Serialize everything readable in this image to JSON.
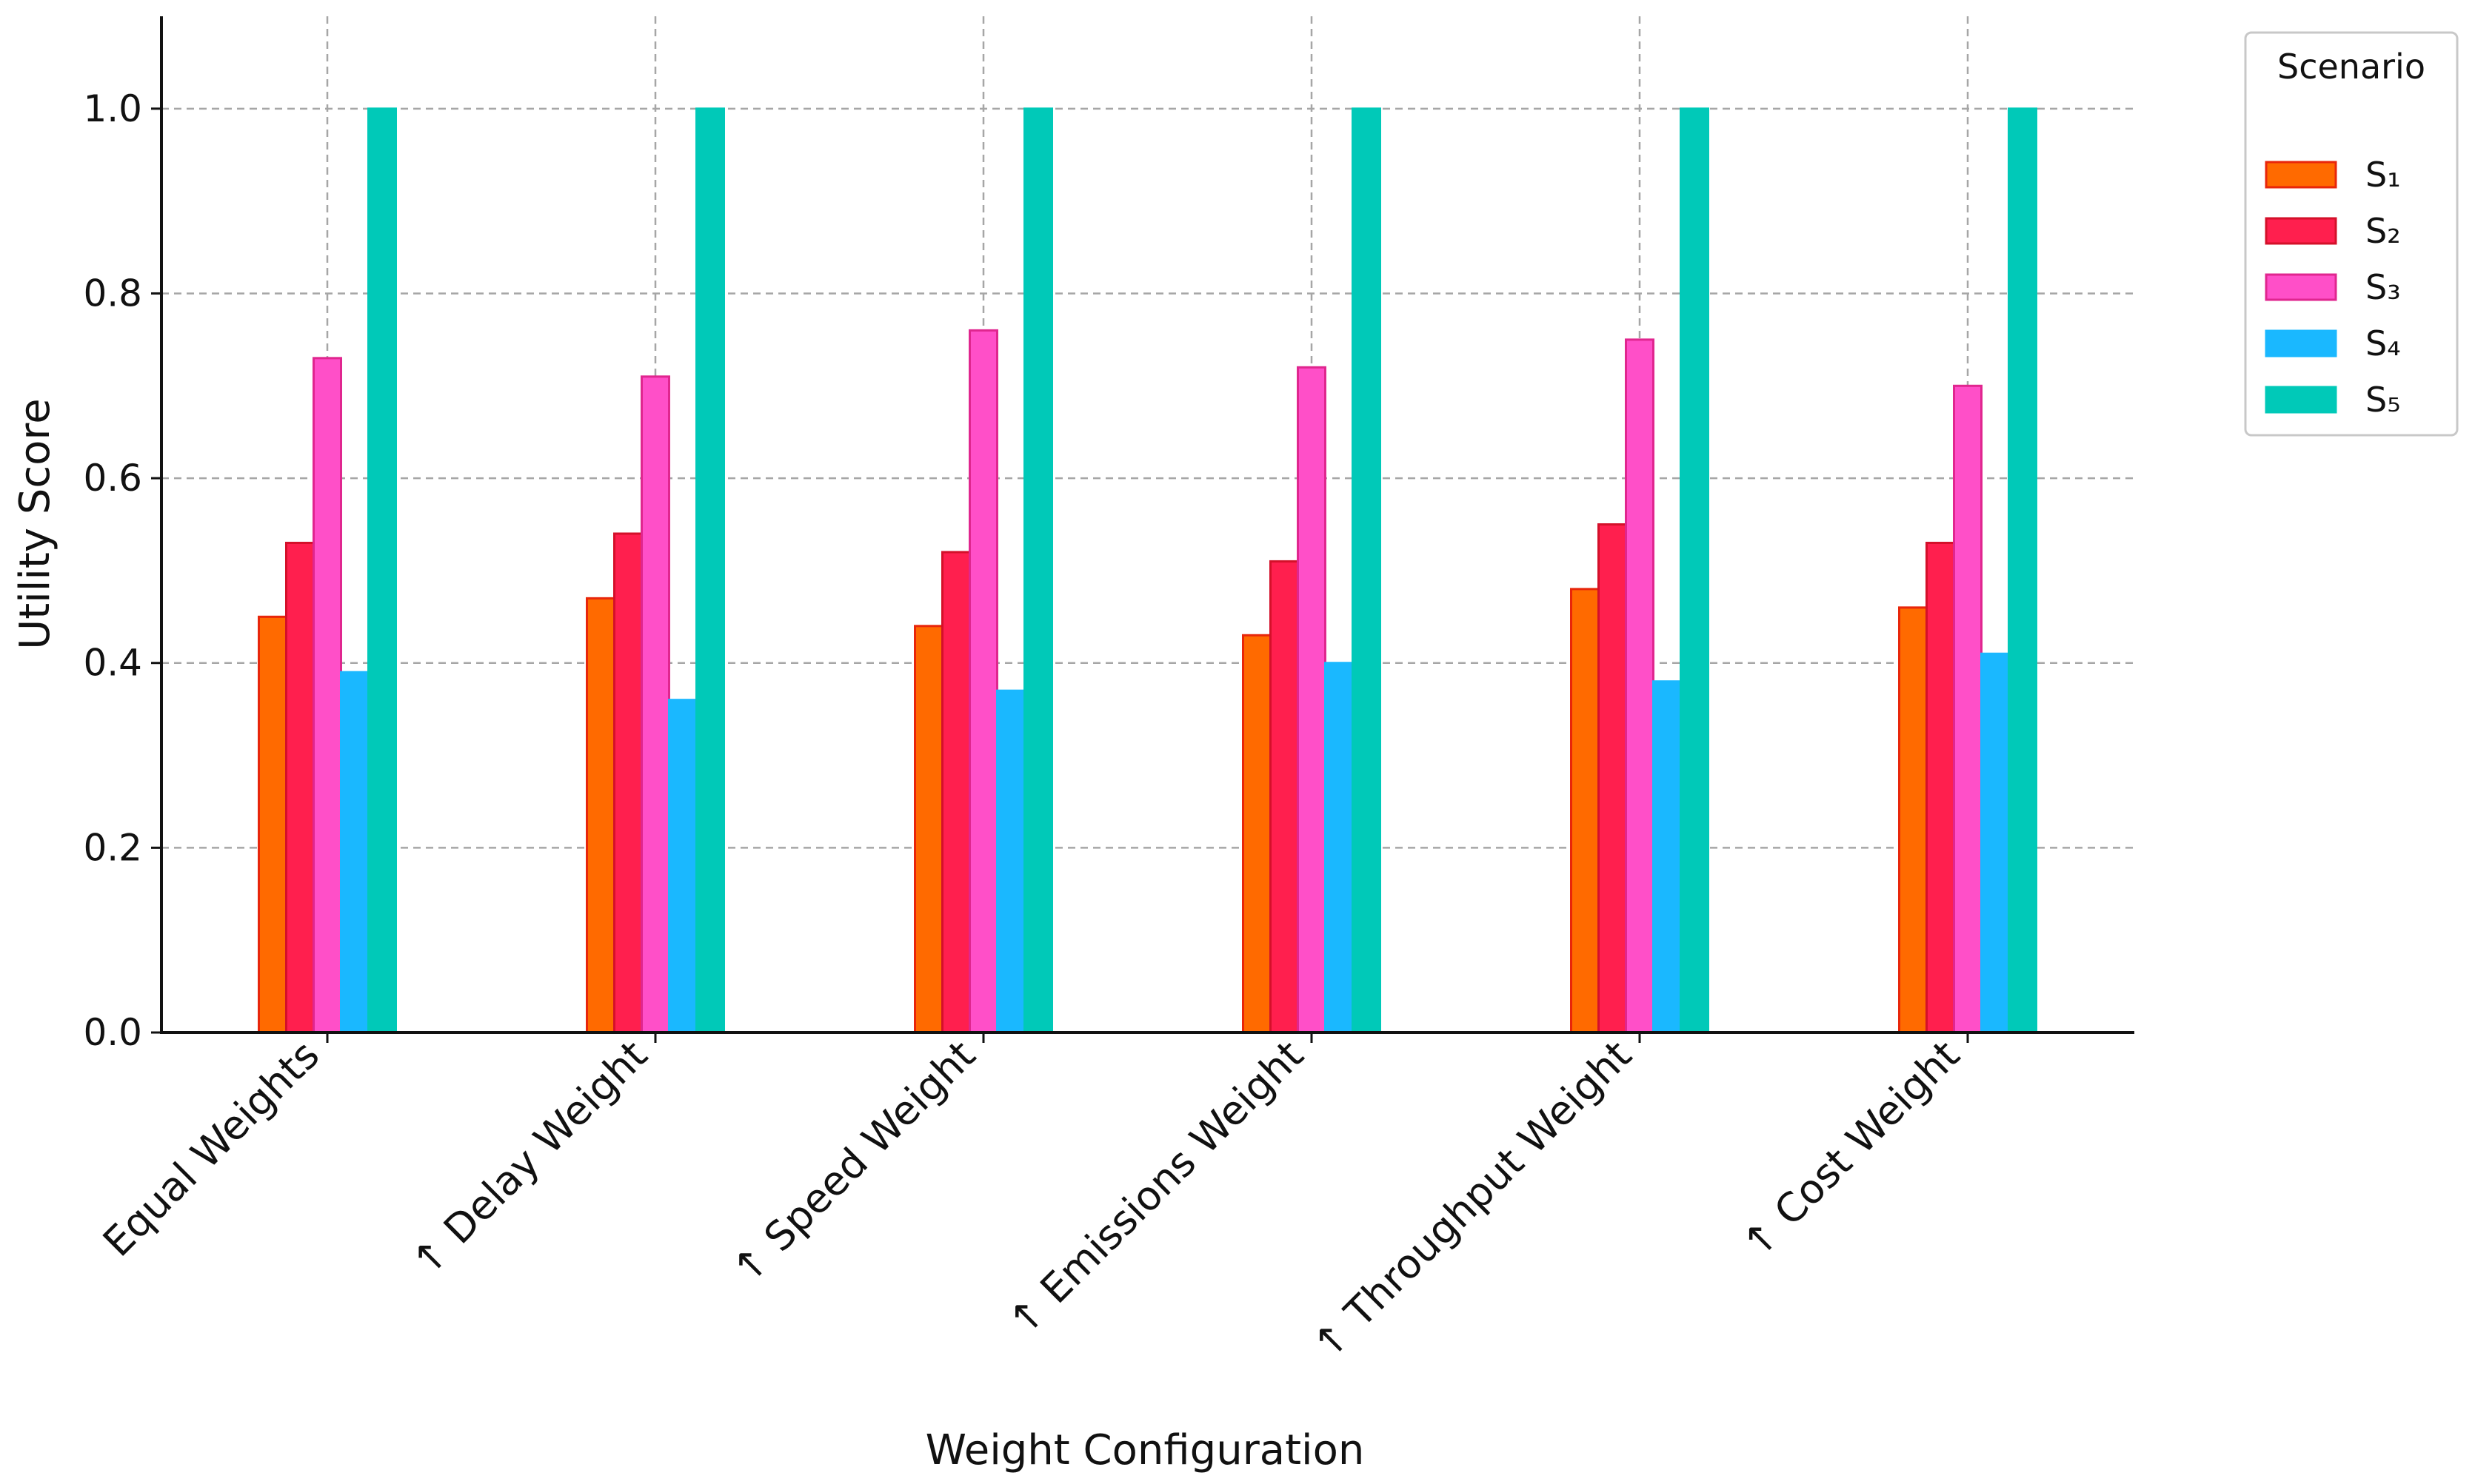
{
  "chart_data": {
    "type": "bar",
    "title": "",
    "xlabel": "Weight Configuration",
    "ylabel": "Utility Score",
    "ylim": [
      0,
      1.1
    ],
    "yticks": [
      "0.0",
      "0.2",
      "0.4",
      "0.6",
      "0.8",
      "1.0"
    ],
    "grid": true,
    "legend": {
      "title": "Scenario",
      "placement": "outside-right-top"
    },
    "categories": [
      "Equal Weights",
      "↑ Delay Weight",
      "↑ Speed Weight",
      "↑ Emissions Weight",
      "↑ Throughput Weight",
      "↑ Cost Weight"
    ],
    "series": [
      {
        "name": "S₁",
        "color": "#ff6a00",
        "edge": "#e8260a",
        "values": [
          0.45,
          0.47,
          0.44,
          0.43,
          0.48,
          0.46
        ]
      },
      {
        "name": "S₂",
        "color": "#ff1f4e",
        "edge": "#d4102a",
        "values": [
          0.53,
          0.54,
          0.52,
          0.51,
          0.55,
          0.53
        ]
      },
      {
        "name": "S₃",
        "color": "#ff4fc8",
        "edge": "#e0268f",
        "values": [
          0.73,
          0.71,
          0.76,
          0.72,
          0.75,
          0.7
        ]
      },
      {
        "name": "S₄",
        "color": "#1ab8ff",
        "edge": "#1ab8ff",
        "values": [
          0.39,
          0.36,
          0.37,
          0.4,
          0.38,
          0.41
        ]
      },
      {
        "name": "S₅",
        "color": "#00c9b8",
        "edge": "#00c9b8",
        "values": [
          1.0,
          1.0,
          1.0,
          1.0,
          1.0,
          1.0
        ]
      }
    ]
  }
}
